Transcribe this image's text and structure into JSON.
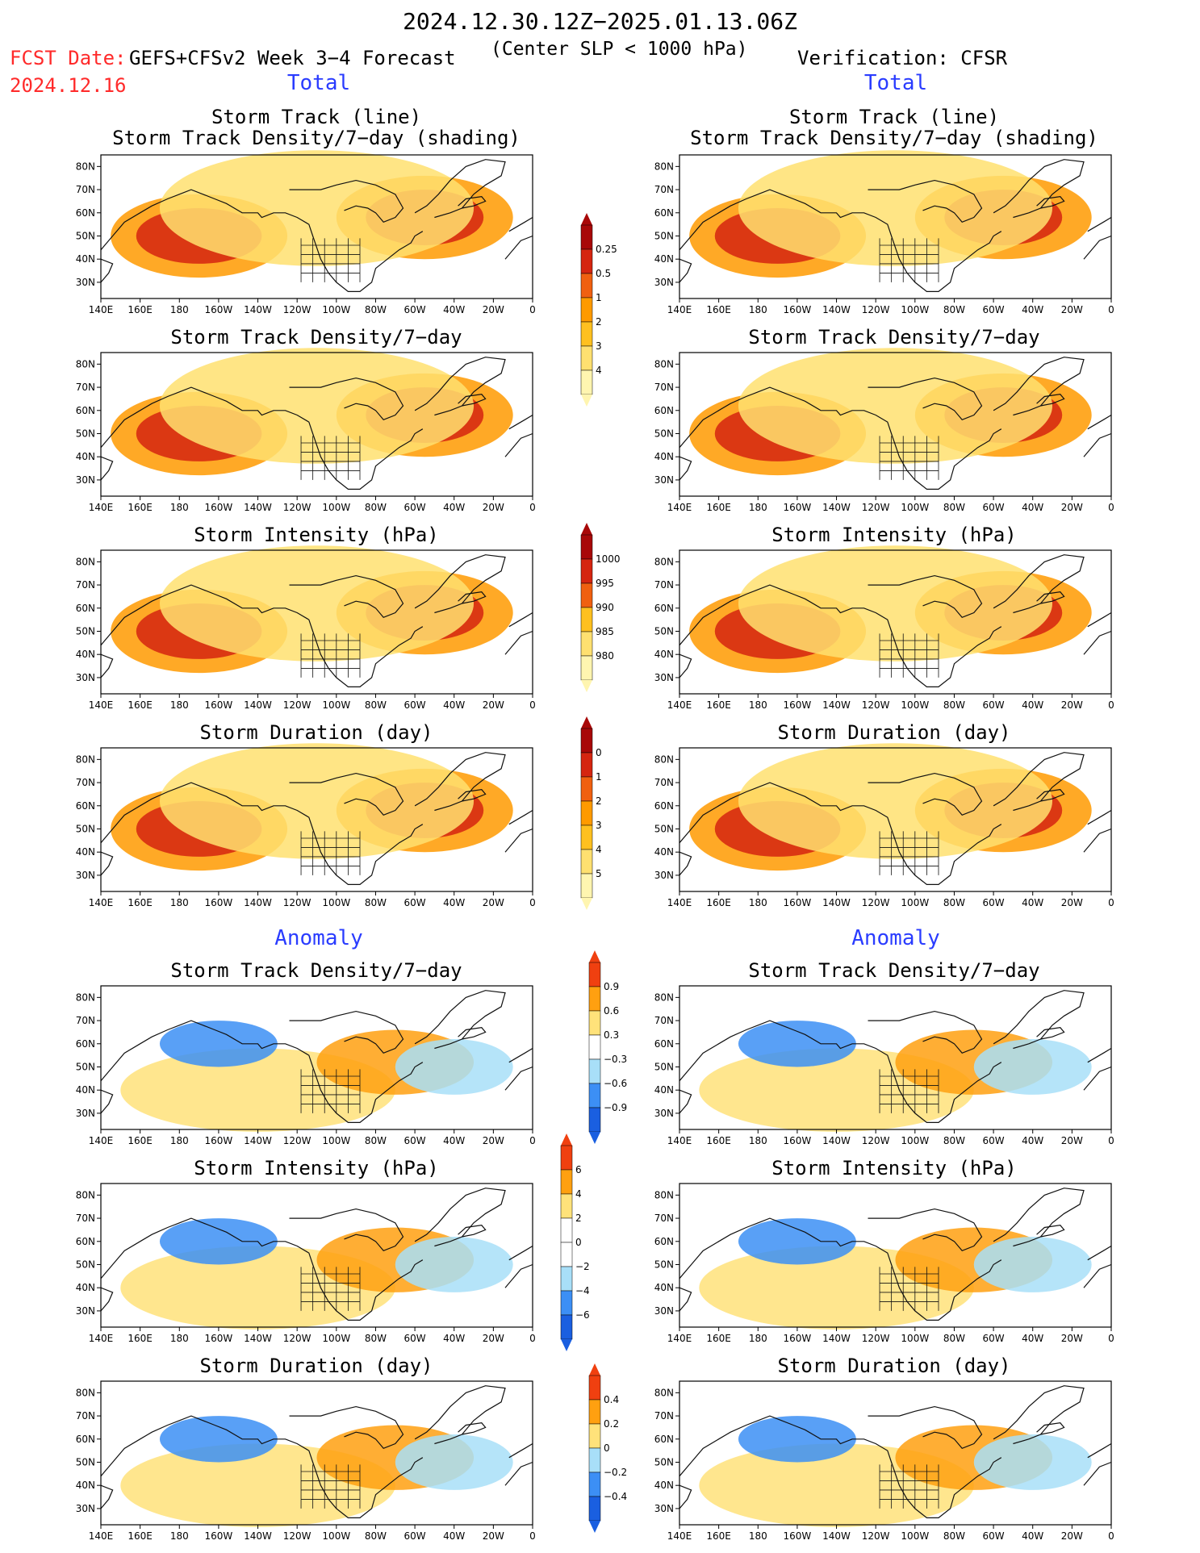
{
  "header": {
    "title": "2024.12.30.12Z−2025.01.13.06Z",
    "fcst_label": "FCST Date:",
    "fcst_date": "2024.12.16",
    "model": "GEFS+CFSv2 Week 3−4 Forecast",
    "criterion": "(Center SLP < 1000 hPa)",
    "verification": "Verification: CFSR"
  },
  "sections": {
    "total_left": "Total",
    "total_right": "Total",
    "anomaly_left": "Anomaly",
    "anomaly_right": "Anomaly"
  },
  "titles": {
    "track_line": "Storm Track (line)",
    "track_shading": "Storm Track Density/7−day (shading)",
    "density": "Storm Track Density/7−day",
    "intensity": "Storm Intensity (hPa)",
    "duration": "Storm Duration (day)"
  },
  "axes": {
    "lon_labels": [
      "140E",
      "160E",
      "180",
      "160W",
      "140W",
      "120W",
      "100W",
      "80W",
      "60W",
      "40W",
      "20W",
      "0"
    ],
    "lat_labels": [
      "80N",
      "70N",
      "60N",
      "50N",
      "40N",
      "30N"
    ]
  },
  "colorbars": {
    "density_total": [
      "0.25",
      "0.5",
      "1",
      "2",
      "3",
      "4"
    ],
    "intensity_total": [
      "1000",
      "995",
      "990",
      "985",
      "980"
    ],
    "duration_total": [
      "0",
      "1",
      "2",
      "3",
      "4",
      "5"
    ],
    "density_anom": [
      "0.9",
      "0.6",
      "0.3",
      "−0.3",
      "−0.6",
      "−0.9"
    ],
    "intensity_anom": [
      "6",
      "4",
      "2",
      "0",
      "−2",
      "−4",
      "−6"
    ],
    "duration_anom": [
      "0.4",
      "0.2",
      "0",
      "−0.2",
      "−0.4"
    ]
  },
  "colors": {
    "total_scale": [
      "#fff5b0",
      "#ffe070",
      "#ffc020",
      "#ff9a00",
      "#f06010",
      "#d52510",
      "#a80808"
    ],
    "anom_scale": [
      "#1a5fe0",
      "#3c8ff5",
      "#a8dff8",
      "#ffffff",
      "#ffe27a",
      "#ffa010",
      "#f04010"
    ],
    "track_line": "#4aa6ff",
    "accent_red": "#ff2a2a",
    "accent_blue": "#2a3cff"
  }
}
